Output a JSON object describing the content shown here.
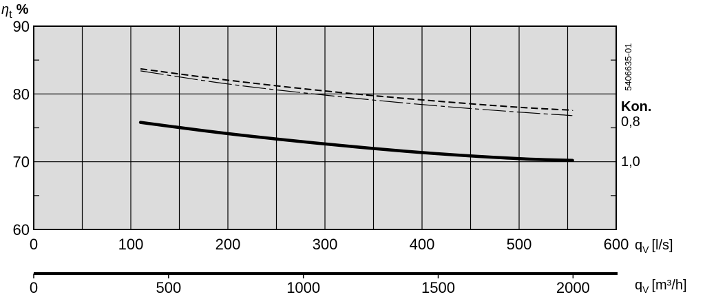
{
  "chart_data": {
    "type": "line",
    "ylabel_symbol": "η",
    "ylabel_sub": "t",
    "ylabel_unit": "%",
    "xlabel_top_q": "q",
    "xlabel_top_sub": "V",
    "xlabel_top_unit": "[l/s]",
    "xlabel_bottom_q": "q",
    "xlabel_bottom_sub": "V",
    "xlabel_bottom_unit": "[m³/h]",
    "ylim": [
      60,
      90
    ],
    "xlim": [
      0,
      600
    ],
    "xlim_m3h": [
      0,
      2160
    ],
    "yticks": [
      60,
      70,
      80,
      90
    ],
    "xticks_ls": [
      0,
      100,
      200,
      300,
      400,
      500,
      600
    ],
    "xticks_m3h": [
      0,
      500,
      1000,
      1500,
      2000
    ],
    "grid": true,
    "code": "5406635-01",
    "right_annotations": {
      "title": "Kon.",
      "labels": [
        {
          "text": "0,8",
          "y": 77.2
        },
        {
          "text": "1,0",
          "y": 70.1
        }
      ]
    },
    "series": [
      {
        "style": "dashed",
        "x": [
          110,
          200,
          300,
          400,
          500,
          555
        ],
        "y": [
          83.7,
          82.0,
          80.4,
          79.1,
          78.0,
          77.6
        ]
      },
      {
        "style": "dash-dot",
        "x": [
          110,
          200,
          300,
          400,
          500,
          555
        ],
        "y": [
          83.4,
          81.4,
          79.8,
          78.4,
          77.3,
          76.8
        ]
      },
      {
        "style": "solid-thick",
        "x": [
          110,
          200,
          300,
          400,
          500,
          555
        ],
        "y": [
          75.8,
          74.1,
          72.6,
          71.3,
          70.4,
          70.2
        ]
      }
    ]
  }
}
